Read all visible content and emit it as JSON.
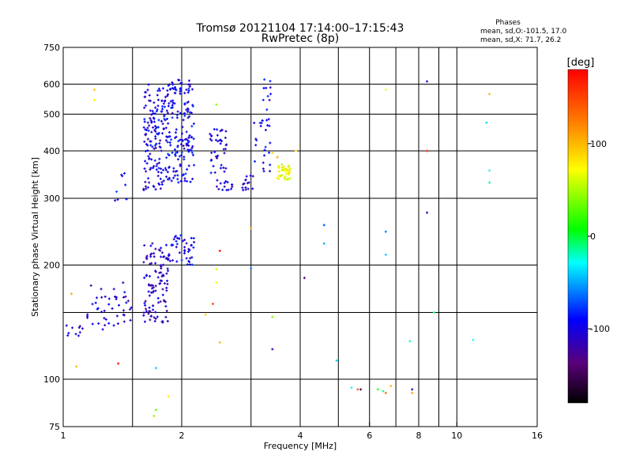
{
  "chart_data": {
    "type": "scatter",
    "title": "Tromsø 20121104 17:14:00–17:15:43",
    "subtitle": "RwPretec (8p)",
    "xlabel": "Frequency [MHz]",
    "ylabel": "Stationary phase Virtual Height [km]",
    "x_scale": "log",
    "y_scale": "log",
    "xlim": [
      1,
      16
    ],
    "ylim": [
      75,
      750
    ],
    "x_ticks": [
      1,
      2,
      4,
      6,
      8,
      10,
      16
    ],
    "x_tick_labels": [
      "1",
      "2",
      "4",
      "6",
      "8",
      "10",
      "16"
    ],
    "y_ticks": [
      75,
      100,
      200,
      300,
      400,
      500,
      600,
      750
    ],
    "y_tick_labels": [
      "75",
      "100",
      "200",
      "300",
      "400",
      "500",
      "600",
      "750"
    ],
    "grid_x": [
      1.5,
      2,
      3,
      4,
      5,
      6,
      7,
      8,
      9,
      10
    ],
    "grid_y": [
      100,
      150,
      200,
      300,
      400,
      500,
      600
    ],
    "grid": true,
    "stats": {
      "header": "Phases",
      "o_line": "mean, sd,O:-101.5, 17.0",
      "x_line": "mean, sd,X:  71.7, 26.2"
    },
    "colorbar": {
      "label": "[deg]",
      "min": -180,
      "max": 180,
      "ticks": [
        100,
        0,
        -100
      ],
      "tick_labels": [
        "100",
        "0",
        "-100"
      ]
    },
    "clusters": [
      {
        "x_range": [
          1.0,
          1.12
        ],
        "y_range": [
          128,
          140
        ],
        "phase": -110,
        "count": 10
      },
      {
        "x_range": [
          1.15,
          1.5
        ],
        "y_range": [
          135,
          180
        ],
        "phase": -105,
        "count": 45
      },
      {
        "x_range": [
          1.6,
          1.85
        ],
        "y_range": [
          140,
          230
        ],
        "phase": -110,
        "count": 110
      },
      {
        "x_range": [
          1.85,
          2.15
        ],
        "y_range": [
          200,
          240
        ],
        "phase": -100,
        "count": 45
      },
      {
        "x_range": [
          1.6,
          1.8
        ],
        "y_range": [
          315,
          600
        ],
        "phase": -100,
        "count": 130
      },
      {
        "x_range": [
          1.8,
          2.15
        ],
        "y_range": [
          330,
          620
        ],
        "phase": -95,
        "count": 190
      },
      {
        "x_range": [
          2.35,
          2.6
        ],
        "y_range": [
          350,
          460
        ],
        "phase": -100,
        "count": 40
      },
      {
        "x_range": [
          2.45,
          2.7
        ],
        "y_range": [
          315,
          335
        ],
        "phase": -105,
        "count": 15
      },
      {
        "x_range": [
          2.85,
          3.05
        ],
        "y_range": [
          310,
          345
        ],
        "phase": -105,
        "count": 15
      },
      {
        "x_range": [
          3.05,
          3.4
        ],
        "y_range": [
          350,
          640
        ],
        "phase": -95,
        "count": 35
      },
      {
        "x_range": [
          1.35,
          1.45
        ],
        "y_range": [
          285,
          350
        ],
        "phase": -90,
        "count": 8
      },
      {
        "x_range": [
          3.5,
          3.8
        ],
        "y_range": [
          335,
          370
        ],
        "phase": 70,
        "count": 40
      }
    ],
    "points": [
      {
        "x": 1.2,
        "y": 580,
        "phase": 95
      },
      {
        "x": 1.2,
        "y": 545,
        "phase": 70
      },
      {
        "x": 1.05,
        "y": 168,
        "phase": 105
      },
      {
        "x": 1.08,
        "y": 108,
        "phase": 100
      },
      {
        "x": 1.38,
        "y": 110,
        "phase": 170
      },
      {
        "x": 1.72,
        "y": 107,
        "phase": -40
      },
      {
        "x": 1.72,
        "y": 83,
        "phase": 30
      },
      {
        "x": 1.7,
        "y": 80,
        "phase": 45
      },
      {
        "x": 1.85,
        "y": 90,
        "phase": 80
      },
      {
        "x": 2.45,
        "y": 195,
        "phase": 60
      },
      {
        "x": 2.45,
        "y": 180,
        "phase": 70
      },
      {
        "x": 2.5,
        "y": 218,
        "phase": 175
      },
      {
        "x": 2.4,
        "y": 158,
        "phase": 150
      },
      {
        "x": 2.3,
        "y": 148,
        "phase": 90
      },
      {
        "x": 2.5,
        "y": 125,
        "phase": 100
      },
      {
        "x": 2.45,
        "y": 530,
        "phase": 40
      },
      {
        "x": 3.0,
        "y": 250,
        "phase": 110
      },
      {
        "x": 3.0,
        "y": 196,
        "phase": -60
      },
      {
        "x": 3.4,
        "y": 146,
        "phase": 40
      },
      {
        "x": 3.4,
        "y": 120,
        "phase": -120
      },
      {
        "x": 3.9,
        "y": 400,
        "phase": 80
      },
      {
        "x": 3.4,
        "y": 395,
        "phase": 90
      },
      {
        "x": 3.5,
        "y": 385,
        "phase": 110
      },
      {
        "x": 4.1,
        "y": 185,
        "phase": -130
      },
      {
        "x": 4.6,
        "y": 255,
        "phase": -70
      },
      {
        "x": 4.6,
        "y": 228,
        "phase": -50
      },
      {
        "x": 4.95,
        "y": 112,
        "phase": -40
      },
      {
        "x": 5.4,
        "y": 95,
        "phase": -30
      },
      {
        "x": 5.6,
        "y": 94,
        "phase": 140
      },
      {
        "x": 5.7,
        "y": 94,
        "phase": -140
      },
      {
        "x": 6.3,
        "y": 94,
        "phase": 20
      },
      {
        "x": 6.5,
        "y": 93,
        "phase": -10
      },
      {
        "x": 6.6,
        "y": 92,
        "phase": 130
      },
      {
        "x": 6.8,
        "y": 96,
        "phase": 100
      },
      {
        "x": 6.6,
        "y": 580,
        "phase": 70
      },
      {
        "x": 6.6,
        "y": 245,
        "phase": -60
      },
      {
        "x": 6.6,
        "y": 213,
        "phase": -40
      },
      {
        "x": 7.6,
        "y": 126,
        "phase": -20
      },
      {
        "x": 7.7,
        "y": 92,
        "phase": 110
      },
      {
        "x": 7.7,
        "y": 94,
        "phase": -110
      },
      {
        "x": 8.4,
        "y": 610,
        "phase": -100
      },
      {
        "x": 8.4,
        "y": 400,
        "phase": 170
      },
      {
        "x": 8.4,
        "y": 275,
        "phase": -110
      },
      {
        "x": 8.75,
        "y": 150,
        "phase": -10
      },
      {
        "x": 11.0,
        "y": 127,
        "phase": -30
      },
      {
        "x": 11.9,
        "y": 475,
        "phase": -40
      },
      {
        "x": 12.1,
        "y": 565,
        "phase": 100
      },
      {
        "x": 12.1,
        "y": 355,
        "phase": -30
      },
      {
        "x": 12.1,
        "y": 330,
        "phase": -15
      }
    ]
  }
}
